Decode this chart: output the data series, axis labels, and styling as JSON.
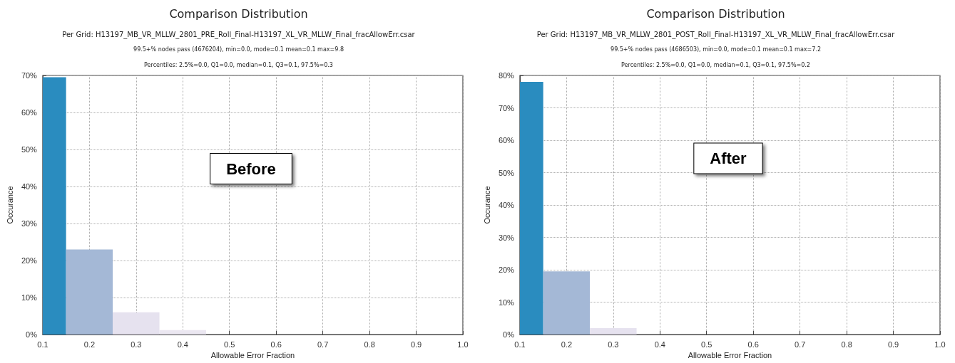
{
  "chart_data": [
    {
      "type": "histogram",
      "title": "Comparison Distribution",
      "subtitle": "Per Grid: H13197_MB_VR_MLLW_2801_PRE_Roll_Final-H13197_XL_VR_MLLW_Final_fracAllowErr.csar",
      "xlabel": "Allowable Error Fraction",
      "ylabel": "Occurance",
      "annotations": [
        "99.5+% nodes pass (4676204), min=0.0, mode=0.1 mean=0.1 max=9.8",
        "Percentiles: 2.5%=0.0, Q1=0.0, median=0.1, Q3=0.1, 97.5%=0.3",
        "Before"
      ],
      "bins": [
        0.1,
        0.15,
        0.25,
        0.35,
        0.45
      ],
      "values": [
        69.5,
        23,
        6,
        1.2
      ],
      "colors": [
        "#2a8cbf",
        "#a4b8d6",
        "#e6e2ef",
        "#ebe7f1"
      ],
      "xlim": [
        0.1,
        1.0
      ],
      "xticks": [
        0.1,
        0.2,
        0.3,
        0.4,
        0.5,
        0.6,
        0.7,
        0.8,
        0.9,
        {
          "value": 1.0,
          "label": "1.0"
        }
      ],
      "ylim": [
        0,
        70
      ],
      "yticks": [
        {
          "value": 0,
          "label": "0%"
        },
        {
          "value": 10,
          "label": "10%"
        },
        {
          "value": 20,
          "label": "20%"
        },
        {
          "value": 30,
          "label": "30%"
        },
        {
          "value": 40,
          "label": "40%"
        },
        {
          "value": 50,
          "label": "50%"
        },
        {
          "value": 60,
          "label": "60%"
        },
        {
          "value": 70,
          "label": "70%"
        }
      ],
      "grid": true
    },
    {
      "type": "histogram",
      "title": "Comparison Distribution",
      "subtitle": "Per Grid: H13197_MB_VR_MLLW_2801_POST_Roll_Final-H13197_XL_VR_MLLW_Final_fracAllowErr.csar",
      "xlabel": "Allowable Error Fraction",
      "ylabel": "Occurance",
      "annotations": [
        "99.5+% nodes pass (4686503), min=0.0, mode=0.1 mean=0.1 max=7.2",
        "Percentiles: 2.5%=0.0, Q1=0.0, median=0.1, Q3=0.1, 97.5%=0.2",
        "After"
      ],
      "bins": [
        0.1,
        0.15,
        0.25,
        0.35
      ],
      "values": [
        78,
        19.5,
        2
      ],
      "colors": [
        "#2a8cbf",
        "#a4b8d6",
        "#e6e2ef"
      ],
      "xlim": [
        0.1,
        1.0
      ],
      "xticks": [
        0.1,
        0.2,
        0.3,
        0.4,
        0.5,
        0.6,
        0.7,
        0.8,
        0.9,
        {
          "value": 1.0,
          "label": "1.0"
        }
      ],
      "ylim": [
        0,
        80
      ],
      "yticks": [
        {
          "value": 0,
          "label": "0%"
        },
        {
          "value": 10,
          "label": "10%"
        },
        {
          "value": 20,
          "label": "20%"
        },
        {
          "value": 30,
          "label": "30%"
        },
        {
          "value": 40,
          "label": "40%"
        },
        {
          "value": 50,
          "label": "50%"
        },
        {
          "value": 60,
          "label": "60%"
        },
        {
          "value": 70,
          "label": "70%"
        },
        {
          "value": 80,
          "label": "80%"
        }
      ],
      "grid": true
    }
  ]
}
